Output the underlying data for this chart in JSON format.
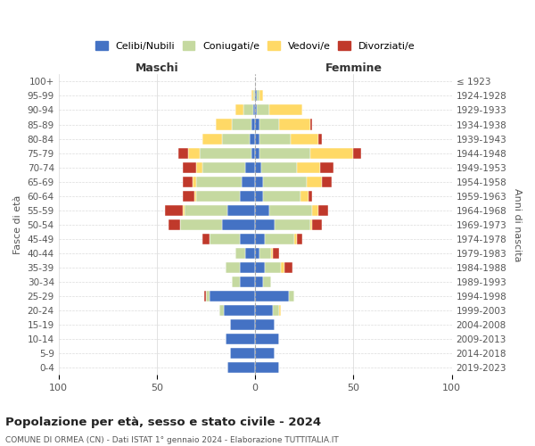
{
  "age_groups": [
    "100+",
    "95-99",
    "90-94",
    "85-89",
    "80-84",
    "75-79",
    "70-74",
    "65-69",
    "60-64",
    "55-59",
    "50-54",
    "45-49",
    "40-44",
    "35-39",
    "30-34",
    "25-29",
    "20-24",
    "15-19",
    "10-14",
    "5-9",
    "0-4"
  ],
  "birth_years": [
    "≤ 1923",
    "1924-1928",
    "1929-1933",
    "1934-1938",
    "1939-1943",
    "1944-1948",
    "1949-1953",
    "1954-1958",
    "1959-1963",
    "1964-1968",
    "1969-1973",
    "1974-1978",
    "1979-1983",
    "1984-1988",
    "1989-1993",
    "1994-1998",
    "1999-2003",
    "2004-2008",
    "2009-2013",
    "2014-2018",
    "2019-2023"
  ],
  "maschi_celibi": [
    0,
    0,
    1,
    2,
    3,
    2,
    5,
    7,
    8,
    14,
    17,
    8,
    5,
    8,
    8,
    23,
    16,
    13,
    15,
    13,
    14
  ],
  "maschi_coniugati": [
    0,
    1,
    5,
    10,
    14,
    26,
    22,
    23,
    22,
    22,
    21,
    15,
    5,
    7,
    4,
    2,
    2,
    0,
    0,
    0,
    0
  ],
  "maschi_vedovi": [
    0,
    1,
    4,
    8,
    10,
    6,
    3,
    2,
    1,
    1,
    0,
    0,
    0,
    0,
    0,
    0,
    0,
    0,
    0,
    0,
    0
  ],
  "maschi_divorziati": [
    0,
    0,
    0,
    0,
    0,
    5,
    7,
    5,
    6,
    9,
    6,
    4,
    0,
    0,
    0,
    1,
    0,
    0,
    0,
    0,
    0
  ],
  "femmine_nubili": [
    0,
    1,
    1,
    2,
    2,
    2,
    3,
    4,
    4,
    7,
    10,
    5,
    2,
    5,
    4,
    17,
    9,
    10,
    12,
    10,
    12
  ],
  "femmine_coniugate": [
    0,
    1,
    6,
    10,
    16,
    26,
    18,
    22,
    19,
    22,
    18,
    15,
    6,
    8,
    4,
    3,
    3,
    0,
    0,
    0,
    0
  ],
  "femmine_vedove": [
    0,
    2,
    17,
    16,
    14,
    22,
    12,
    8,
    4,
    3,
    1,
    1,
    1,
    2,
    0,
    0,
    1,
    0,
    0,
    0,
    0
  ],
  "femmine_divorziate": [
    0,
    0,
    0,
    1,
    2,
    4,
    7,
    5,
    2,
    5,
    5,
    3,
    3,
    4,
    0,
    0,
    0,
    0,
    0,
    0,
    0
  ],
  "colors": {
    "celibi": "#4472c4",
    "coniugati": "#c5d9a0",
    "vedovi": "#ffd966",
    "divorziati": "#c0392b"
  },
  "title": "Popolazione per età, sesso e stato civile - 2024",
  "subtitle": "COMUNE DI ORMEA (CN) - Dati ISTAT 1° gennaio 2024 - Elaborazione TUTTITALIA.IT",
  "ylabel_left": "Fasce di età",
  "ylabel_right": "Anni di nascita",
  "xlabel_left": "Maschi",
  "xlabel_right": "Femmine",
  "xlim": 100,
  "legend_labels": [
    "Celibi/Nubili",
    "Coniugati/e",
    "Vedovi/e",
    "Divorziati/e"
  ],
  "background_color": "#ffffff",
  "grid_color": "#cccccc"
}
